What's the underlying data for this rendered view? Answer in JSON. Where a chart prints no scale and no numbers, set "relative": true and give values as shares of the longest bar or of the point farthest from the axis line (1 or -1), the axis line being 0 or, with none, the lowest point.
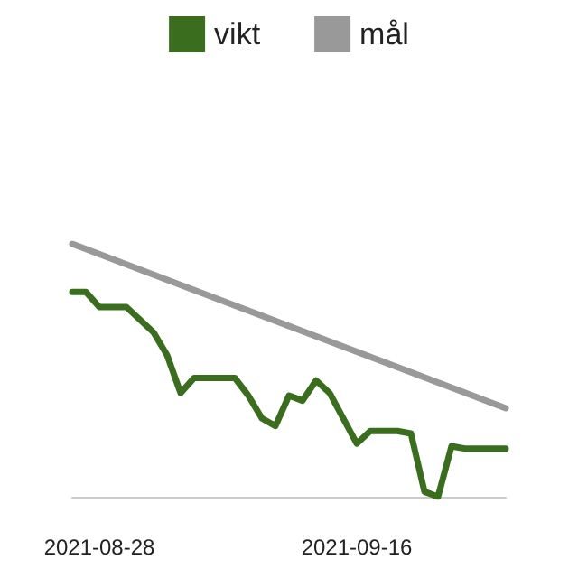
{
  "chart_data": {
    "type": "line",
    "relative": true,
    "legend": "top",
    "grid": false,
    "marker": "none",
    "line_style": "solid",
    "xlim": [
      "2021-08-26",
      "2021-09-27"
    ],
    "xticks": [
      "2021-08-28",
      "2021-09-16"
    ],
    "series": [
      {
        "name": "vikt",
        "color": "#3a6e1e",
        "x": [
          "2021-08-26",
          "2021-08-27",
          "2021-08-28",
          "2021-08-29",
          "2021-08-30",
          "2021-08-31",
          "2021-09-01",
          "2021-09-02",
          "2021-09-03",
          "2021-09-04",
          "2021-09-05",
          "2021-09-06",
          "2021-09-07",
          "2021-09-08",
          "2021-09-09",
          "2021-09-10",
          "2021-09-11",
          "2021-09-12",
          "2021-09-13",
          "2021-09-14",
          "2021-09-15",
          "2021-09-16",
          "2021-09-17",
          "2021-09-18",
          "2021-09-19",
          "2021-09-20",
          "2021-09-21",
          "2021-09-22",
          "2021-09-23",
          "2021-09-24",
          "2021-09-25",
          "2021-09-26",
          "2021-09-27"
        ],
        "values": [
          0.81,
          0.81,
          0.75,
          0.75,
          0.75,
          0.7,
          0.65,
          0.56,
          0.41,
          0.47,
          0.47,
          0.47,
          0.47,
          0.4,
          0.31,
          0.28,
          0.4,
          0.38,
          0.46,
          0.41,
          0.31,
          0.21,
          0.26,
          0.26,
          0.26,
          0.25,
          0.02,
          0,
          0.2,
          0.19,
          0.19,
          0.19,
          0.19
        ]
      },
      {
        "name": "mål",
        "color": "#999999",
        "x": [
          "2021-08-26",
          "2021-09-27"
        ],
        "values": [
          1,
          0.35
        ]
      }
    ]
  }
}
